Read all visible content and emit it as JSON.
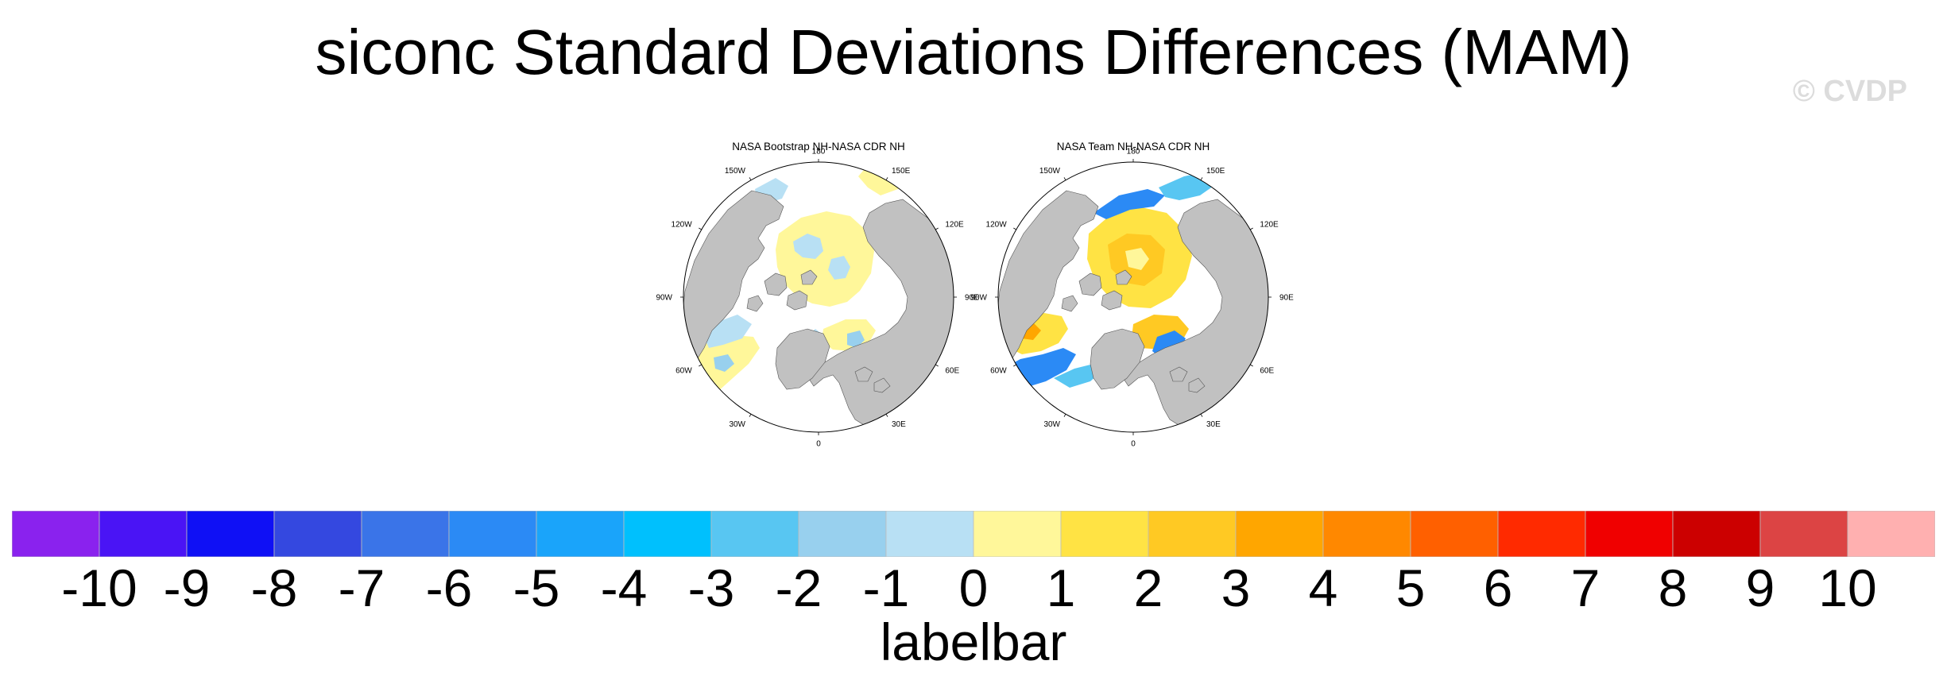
{
  "title": "siconc Standard Deviations Differences (MAM)",
  "watermark": "© CVDP",
  "map_panels": [
    {
      "title": "NASA Bootstrap NH-NASA CDR NH",
      "lon_labels": [
        "180",
        "150E",
        "120E",
        "90E",
        "60E",
        "30E",
        "0",
        "30W",
        "60W",
        "90W",
        "120W",
        "150W"
      ]
    },
    {
      "title": "NASA Team NH-NASA CDR NH",
      "lon_labels": [
        "180",
        "150E",
        "120E",
        "90E",
        "60E",
        "30E",
        "0",
        "30W",
        "60W",
        "90W",
        "120W",
        "150W"
      ]
    }
  ],
  "labelbar": {
    "title": "labelbar",
    "ticks": [
      "-10",
      "-9",
      "-8",
      "-7",
      "-6",
      "-5",
      "-4",
      "-3",
      "-2",
      "-1",
      "0",
      "1",
      "2",
      "3",
      "4",
      "5",
      "6",
      "7",
      "8",
      "9",
      "10"
    ],
    "colors": [
      "#8a22ee",
      "#4a14f5",
      "#0f10f5",
      "#3448e0",
      "#3a74e8",
      "#2b8af5",
      "#1aa4fa",
      "#00c0fd",
      "#58c6f2",
      "#98d0ee",
      "#b8e0f4",
      "#fff79a",
      "#ffe344",
      "#ffc923",
      "#ffa600",
      "#ff8800",
      "#ff6000",
      "#ff2a00",
      "#f00000",
      "#cc0000",
      "#dc4444",
      "#ffb0b0"
    ]
  },
  "land_color": "#c1c1c1",
  "ocean_color": "#ffffff"
}
